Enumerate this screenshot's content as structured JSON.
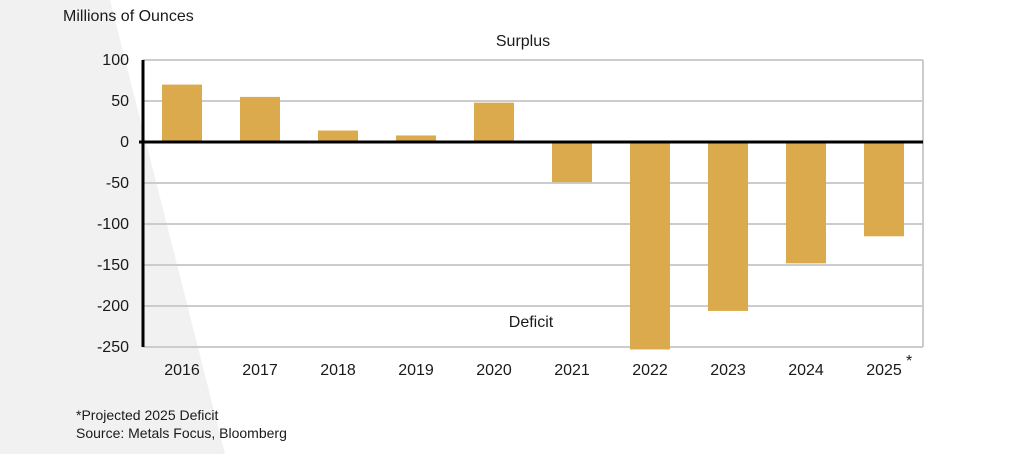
{
  "chart_data": {
    "type": "bar",
    "ylabel": "Millions of Ounces",
    "categories": [
      "2016",
      "2017",
      "2018",
      "2019",
      "2020",
      "2021",
      "2022",
      "2023",
      "2024",
      "2025"
    ],
    "values": [
      70,
      55,
      14,
      8,
      48,
      -49,
      -253,
      -206,
      -148,
      -115
    ],
    "ylim": [
      -250,
      100
    ],
    "yticks": [
      100,
      50,
      0,
      -50,
      -100,
      -150,
      -200,
      -250
    ],
    "grid": true,
    "annotations": {
      "surplus": "Surplus",
      "deficit": "Deficit"
    },
    "projected_marker": {
      "category_index": 9,
      "symbol": "*"
    },
    "bar_color": "#DBAA4C",
    "grid_color": "#CCCCCC",
    "zero_line_color": "#000000"
  },
  "footnotes": {
    "projection_note": "*Projected 2025 Deficit",
    "source": "Source: Metals Focus, Bloomberg"
  },
  "background": {
    "band_color": "#F1F1F1"
  }
}
